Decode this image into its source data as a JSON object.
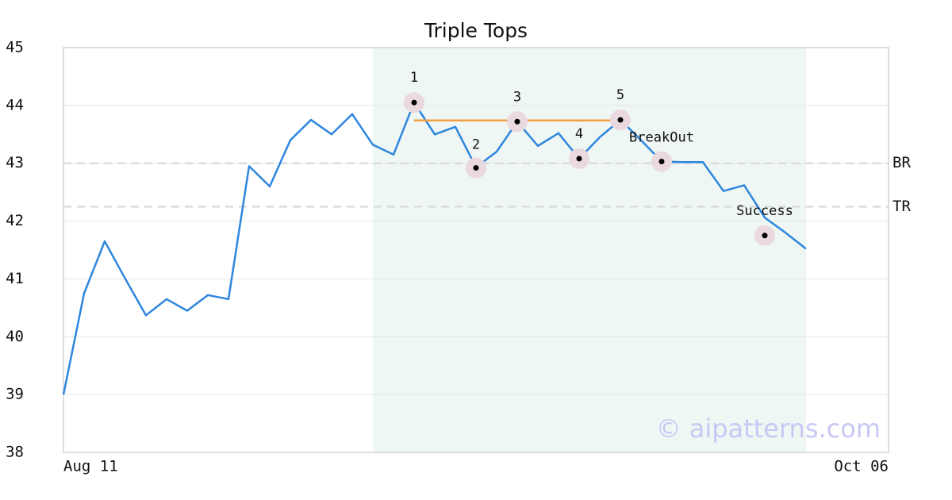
{
  "chart_data": {
    "type": "line",
    "title": "Triple Tops",
    "categories": [
      "Aug 11",
      null,
      null,
      null,
      null,
      null,
      null,
      null,
      null,
      null,
      null,
      null,
      null,
      null,
      null,
      null,
      null,
      null,
      null,
      null,
      null,
      null,
      null,
      null,
      null,
      null,
      null,
      null,
      null,
      null,
      null,
      null,
      null,
      null,
      null,
      null,
      null,
      null,
      null,
      null,
      "Oct 06"
    ],
    "values": [
      39.0,
      40.75,
      41.65,
      41.0,
      40.37,
      40.65,
      40.45,
      40.72,
      40.65,
      42.95,
      42.6,
      43.4,
      43.75,
      43.5,
      43.85,
      43.32,
      43.15,
      44.05,
      43.5,
      43.63,
      42.93,
      43.2,
      43.72,
      43.3,
      43.52,
      43.08,
      43.45,
      43.75,
      43.4,
      43.03,
      43.02,
      43.02,
      42.52,
      42.62,
      42.06,
      41.8,
      41.52,
      null,
      null,
      null,
      null
    ],
    "color": "#2e86de",
    "ylim": [
      38,
      45
    ],
    "yticks": [
      38,
      39,
      40,
      41,
      42,
      43,
      44,
      45
    ],
    "grid": true,
    "shaded_span": {
      "from": 15,
      "to": 36,
      "color": "#eef7f3"
    },
    "reference_lines": [
      {
        "label": "BR",
        "value": 43.0
      },
      {
        "label": "TR",
        "value": 42.25
      }
    ],
    "resistance": {
      "from": 17,
      "to": 27,
      "value": 43.74,
      "color": "#f39c42"
    },
    "annotations": [
      {
        "label": "1",
        "x": 17,
        "value": 44.05
      },
      {
        "label": "2",
        "x": 20,
        "value": 42.92
      },
      {
        "label": "3",
        "x": 22,
        "value": 43.72
      },
      {
        "label": "4",
        "x": 25,
        "value": 43.08
      },
      {
        "label": "5",
        "x": 27,
        "value": 43.75
      },
      {
        "label": "BreakOut",
        "x": 29,
        "value": 43.03
      },
      {
        "label": "Success",
        "x": 34,
        "value": 41.75
      }
    ],
    "watermark": "© aipatterns.com"
  }
}
